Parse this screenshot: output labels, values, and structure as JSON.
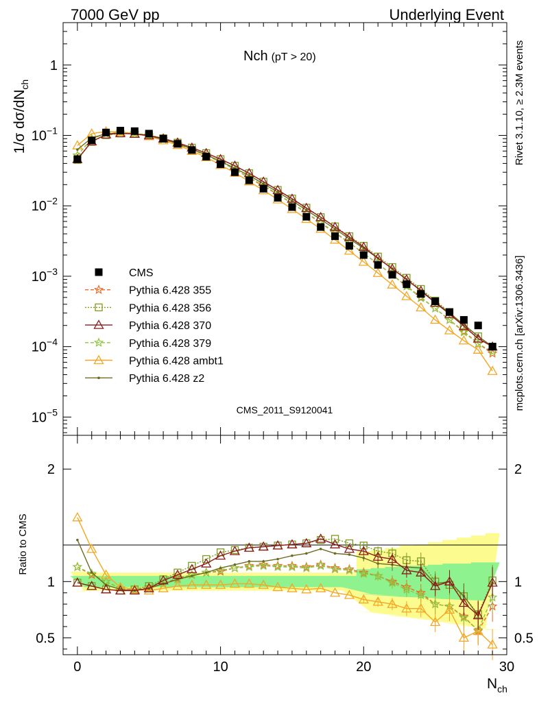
{
  "header": {
    "left": "7000 GeV pp",
    "right": "Underlying Event"
  },
  "side_text": {
    "rivet": "Rivet 3.1.10, ≥ 2.3M events",
    "mcplots": "mcplots.cern.ch [arXiv:1306.3436]"
  },
  "analysis_label": "CMS_2011_S9120041",
  "chart_data": [
    {
      "type": "scatter",
      "panel": "main",
      "title": "Nch",
      "title_sub": "(pT > 20)",
      "ylabel": "1/σ dσ/dN",
      "ylabel_sub": "ch",
      "yscale": "log",
      "ylim": [
        5.5e-06,
        4
      ],
      "xlim": [
        -1,
        30
      ],
      "y_tick_labels": [
        {
          "value": 1,
          "base": "1",
          "exp": ""
        },
        {
          "value": 0.1,
          "base": "10",
          "exp": "−1"
        },
        {
          "value": 0.01,
          "base": "10",
          "exp": "−2"
        },
        {
          "value": 0.001,
          "base": "10",
          "exp": "−3"
        },
        {
          "value": 0.0001,
          "base": "10",
          "exp": "−4"
        },
        {
          "value": 1e-05,
          "base": "10",
          "exp": "−5"
        }
      ],
      "x": [
        0,
        1,
        2,
        3,
        4,
        5,
        6,
        7,
        8,
        9,
        10,
        11,
        12,
        13,
        14,
        15,
        16,
        17,
        18,
        19,
        20,
        21,
        22,
        23,
        24,
        25,
        26,
        27,
        28,
        29
      ],
      "series": [
        {
          "name": "CMS",
          "color": "#000000",
          "marker": "square",
          "line": "none",
          "values": [
            0.046,
            0.085,
            0.11,
            0.117,
            0.115,
            0.106,
            0.09,
            0.076,
            0.062,
            0.05,
            0.039,
            0.03,
            0.023,
            0.0175,
            0.013,
            0.0096,
            0.007,
            0.005,
            0.0037,
            0.0027,
            0.002,
            0.00145,
            0.00105,
            0.00077,
            0.00056,
            0.00044,
            0.00031,
            0.00024,
            0.0002,
            0.0001
          ]
        },
        {
          "name": "Pythia 6.428 355",
          "color": "#ee6a24",
          "marker": "star",
          "line": "dashed",
          "values": [
            0.052,
            0.09,
            0.106,
            0.11,
            0.107,
            0.1,
            0.088,
            0.076,
            0.063,
            0.052,
            0.042,
            0.033,
            0.025,
            0.019,
            0.0145,
            0.0108,
            0.0079,
            0.0057,
            0.0041,
            0.003,
            0.0021,
            0.0015,
            0.00105,
            0.00073,
            0.0005,
            0.00035,
            0.00024,
            0.000165,
            0.00011,
            8e-05
          ]
        },
        {
          "name": "Pythia 6.428 356",
          "color": "#7f9b1e",
          "marker": "open-square",
          "line": "dotted",
          "values": [
            0.045,
            0.081,
            0.101,
            0.107,
            0.106,
            0.101,
            0.091,
            0.079,
            0.067,
            0.056,
            0.046,
            0.037,
            0.029,
            0.022,
            0.0168,
            0.0127,
            0.0094,
            0.0069,
            0.0051,
            0.0037,
            0.0027,
            0.0019,
            0.00135,
            0.00095,
            0.00066,
            0.00045,
            0.00031,
            0.0002,
            0.00014,
            0.0001
          ]
        },
        {
          "name": "Pythia 6.428 370",
          "color": "#8b1a1a",
          "marker": "open-triangle",
          "line": "solid",
          "values": [
            0.046,
            0.082,
            0.103,
            0.107,
            0.105,
            0.1,
            0.09,
            0.079,
            0.067,
            0.056,
            0.046,
            0.037,
            0.029,
            0.022,
            0.0167,
            0.0126,
            0.0093,
            0.0069,
            0.005,
            0.0036,
            0.0026,
            0.0018,
            0.00128,
            0.0009,
            0.00062,
            0.00042,
            0.00029,
            0.000195,
            0.00013,
            0.0001
          ]
        },
        {
          "name": "Pythia 6.428 379",
          "color": "#8cc63f",
          "marker": "star",
          "line": "dashed",
          "values": [
            0.052,
            0.09,
            0.106,
            0.11,
            0.107,
            0.1,
            0.088,
            0.076,
            0.063,
            0.052,
            0.042,
            0.033,
            0.0255,
            0.0194,
            0.0147,
            0.0109,
            0.008,
            0.0058,
            0.0042,
            0.003,
            0.0021,
            0.0015,
            0.00104,
            0.00072,
            0.00049,
            0.00035,
            0.00024,
            0.00016,
            0.00011,
            8.5e-05
          ]
        },
        {
          "name": "Pythia 6.428 ambt1",
          "color": "#f5a623",
          "marker": "open-triangle",
          "line": "solid",
          "values": [
            0.072,
            0.106,
            0.114,
            0.112,
            0.106,
            0.097,
            0.085,
            0.073,
            0.06,
            0.049,
            0.038,
            0.0295,
            0.0222,
            0.0166,
            0.0123,
            0.009,
            0.0065,
            0.0047,
            0.0033,
            0.0023,
            0.0016,
            0.00111,
            0.00076,
            0.00052,
            0.00036,
            0.00024,
            0.00017,
            0.000122,
            9e-05,
            4.5e-05
          ]
        },
        {
          "name": "Pythia 6.428 z2",
          "color": "#6b6b1e",
          "marker": "dot",
          "line": "solid",
          "values": [
            0.063,
            0.092,
            0.106,
            0.108,
            0.105,
            0.099,
            0.088,
            0.077,
            0.064,
            0.053,
            0.043,
            0.034,
            0.027,
            0.0205,
            0.0157,
            0.0118,
            0.0087,
            0.0064,
            0.0047,
            0.0034,
            0.0025,
            0.0018,
            0.00128,
            0.0009,
            0.00063,
            0.00043,
            0.0003,
            0.000205,
            0.00014,
            0.0001
          ]
        }
      ]
    },
    {
      "type": "line",
      "panel": "ratio",
      "ylabel": "Ratio to CMS",
      "xlabel": "N",
      "xlabel_sub": "ch",
      "ylim": [
        0.35,
        2.3
      ],
      "xlim": [
        -1,
        30
      ],
      "y_tick_labels": [
        2,
        1,
        0.5
      ],
      "x_tick_labels": [
        0,
        10,
        20,
        30
      ],
      "x": [
        0,
        1,
        2,
        3,
        4,
        5,
        6,
        7,
        8,
        9,
        10,
        11,
        12,
        13,
        14,
        15,
        16,
        17,
        18,
        19,
        20,
        21,
        22,
        23,
        24,
        25,
        26,
        27,
        28,
        29
      ],
      "band_inner": [
        0.05,
        0.05,
        0.05,
        0.05,
        0.05,
        0.05,
        0.05,
        0.05,
        0.05,
        0.05,
        0.05,
        0.05,
        0.05,
        0.05,
        0.05,
        0.05,
        0.05,
        0.05,
        0.05,
        0.05,
        0.11,
        0.12,
        0.13,
        0.14,
        0.14,
        0.15,
        0.16,
        0.16,
        0.17,
        0.17
      ],
      "band_outer": [
        0.09,
        0.08,
        0.08,
        0.08,
        0.08,
        0.08,
        0.08,
        0.08,
        0.08,
        0.08,
        0.08,
        0.08,
        0.08,
        0.08,
        0.08,
        0.08,
        0.08,
        0.08,
        0.08,
        0.08,
        0.27,
        0.28,
        0.3,
        0.32,
        0.33,
        0.35,
        0.37,
        0.39,
        0.41,
        0.43
      ],
      "series": [
        {
          "name": "Pythia 6.428 355",
          "values": [
            1.13,
            1.06,
            1.0,
            0.94,
            0.93,
            0.95,
            0.98,
            1.03,
            1.06,
            1.08,
            1.09,
            1.12,
            1.14,
            1.15,
            1.14,
            1.14,
            1.13,
            1.15,
            1.12,
            1.11,
            1.08,
            1.05,
            1.0,
            0.95,
            0.9,
            0.8,
            0.78,
            0.69,
            0.56,
            0.78
          ]
        },
        {
          "name": "Pythia 6.428 356",
          "values": [
            0.99,
            0.96,
            0.93,
            0.92,
            0.93,
            0.96,
            1.02,
            1.08,
            1.14,
            1.2,
            1.26,
            1.28,
            1.3,
            1.31,
            1.32,
            1.33,
            1.34,
            1.37,
            1.38,
            1.34,
            1.32,
            1.27,
            1.25,
            1.19,
            1.18,
            1.0,
            0.97,
            0.87,
            0.71,
            1.01
          ]
        },
        {
          "name": "Pythia 6.428 370",
          "values": [
            0.99,
            0.96,
            0.93,
            0.92,
            0.92,
            0.94,
            1.01,
            1.06,
            1.11,
            1.16,
            1.23,
            1.27,
            1.3,
            1.31,
            1.32,
            1.33,
            1.34,
            1.38,
            1.33,
            1.29,
            1.27,
            1.22,
            1.2,
            1.1,
            1.08,
            0.96,
            1.0,
            0.81,
            0.7,
            0.99
          ]
        },
        {
          "name": "Pythia 6.428 379",
          "values": [
            1.13,
            1.07,
            1.0,
            0.94,
            0.93,
            0.94,
            0.98,
            1.02,
            1.06,
            1.08,
            1.1,
            1.12,
            1.13,
            1.14,
            1.13,
            1.13,
            1.12,
            1.14,
            1.11,
            1.1,
            1.07,
            1.05,
            0.99,
            0.93,
            0.88,
            0.8,
            0.78,
            0.68,
            0.57,
            0.86
          ]
        },
        {
          "name": "Pythia 6.428 ambt1",
          "values": [
            1.57,
            1.29,
            1.06,
            0.95,
            0.93,
            0.92,
            0.94,
            0.96,
            0.97,
            0.97,
            0.97,
            0.98,
            0.98,
            0.97,
            0.95,
            0.94,
            0.93,
            0.94,
            0.9,
            0.88,
            0.84,
            0.82,
            0.8,
            0.76,
            0.76,
            0.64,
            0.75,
            0.5,
            0.56,
            0.44
          ]
        },
        {
          "name": "Pythia 6.428 z2",
          "values": [
            1.37,
            1.08,
            0.97,
            0.93,
            0.92,
            0.94,
            0.98,
            1.02,
            1.05,
            1.08,
            1.12,
            1.15,
            1.18,
            1.18,
            1.2,
            1.23,
            1.25,
            1.29,
            1.25,
            1.24,
            1.21,
            1.16,
            1.15,
            1.13,
            1.12,
            0.98,
            1.0,
            0.87,
            0.7,
            0.99
          ]
        }
      ]
    }
  ]
}
